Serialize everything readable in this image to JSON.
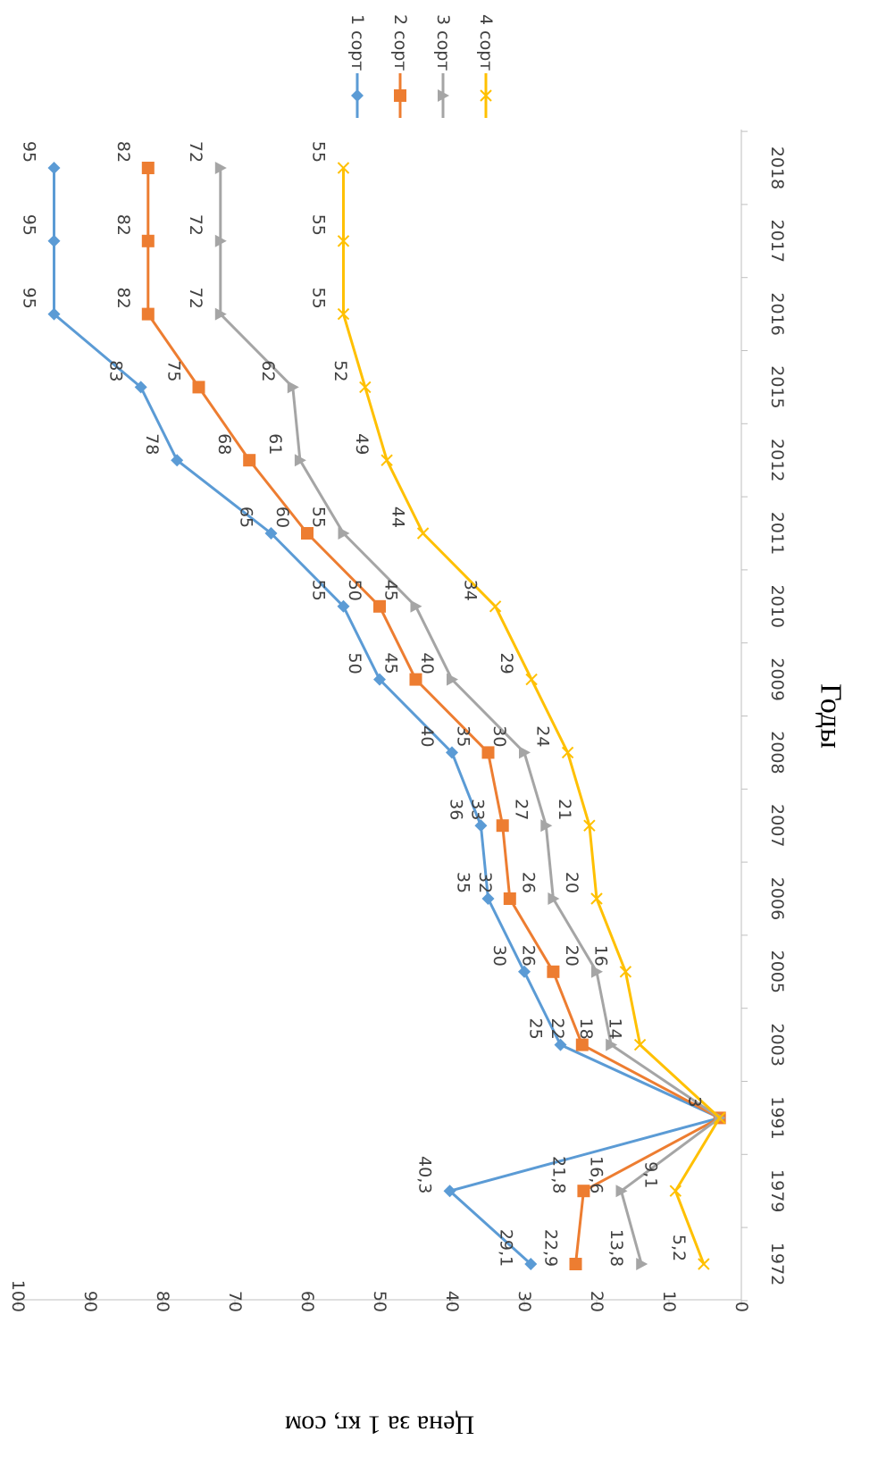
{
  "chart_data": {
    "type": "line",
    "orientation": "rotated-90-clockwise",
    "categories": [
      "1972",
      "1979",
      "1991",
      "2003",
      "2005",
      "2006",
      "2007",
      "2008",
      "2009",
      "2010",
      "2011",
      "2012",
      "2015",
      "2016",
      "2017",
      "2018"
    ],
    "series": [
      {
        "name": "1 сорт",
        "color": "#5B9BD5",
        "marker": "diamond",
        "values": [
          29.1,
          40.3,
          3,
          25,
          30,
          35,
          36,
          40,
          50,
          55,
          65,
          78,
          83,
          95,
          95,
          95
        ],
        "labels": [
          "29,1",
          "40,3",
          "3",
          "25",
          "30",
          "35",
          "36",
          "40",
          "50",
          "55",
          "65",
          "78",
          "83",
          "95",
          "95",
          "95"
        ]
      },
      {
        "name": "2 сорт",
        "color": "#ED7D31",
        "marker": "square",
        "values": [
          22.9,
          21.8,
          3,
          22,
          26,
          32,
          33,
          35,
          45,
          50,
          60,
          68,
          75,
          82,
          82,
          82
        ],
        "labels": [
          "22,9",
          "21,8",
          "3",
          "22",
          "26",
          "32",
          "33",
          "35",
          "45",
          "50",
          "60",
          "68",
          "75",
          "82",
          "82",
          "82"
        ]
      },
      {
        "name": "3 сорт",
        "color": "#A5A5A5",
        "marker": "triangle",
        "values": [
          13.8,
          16.6,
          3,
          18,
          20,
          26,
          27,
          30,
          40,
          45,
          55,
          61,
          62,
          72,
          72,
          72
        ],
        "labels": [
          "13,8",
          "16,6",
          "3",
          "18",
          "20",
          "26",
          "27",
          "30",
          "40",
          "45",
          "55",
          "61",
          "62",
          "72",
          "72",
          "72"
        ]
      },
      {
        "name": "4 сорт",
        "color": "#FFC000",
        "marker": "x",
        "values": [
          5.2,
          9.1,
          3,
          14,
          16,
          20,
          21,
          24,
          29,
          34,
          44,
          49,
          52,
          55,
          55,
          55
        ],
        "labels": [
          "5,2",
          "9,1",
          "3",
          "14",
          "16",
          "20",
          "21",
          "24",
          "29",
          "34",
          "44",
          "49",
          "52",
          "55",
          "55",
          "55"
        ]
      }
    ],
    "xlabel": "Годы",
    "ylabel": "Цена за 1 кг, сом",
    "ylim": [
      0,
      100
    ],
    "yticks": [
      0,
      10,
      20,
      30,
      40,
      50,
      60,
      70,
      80,
      90,
      100
    ],
    "grid": false,
    "legend": "top-right"
  }
}
